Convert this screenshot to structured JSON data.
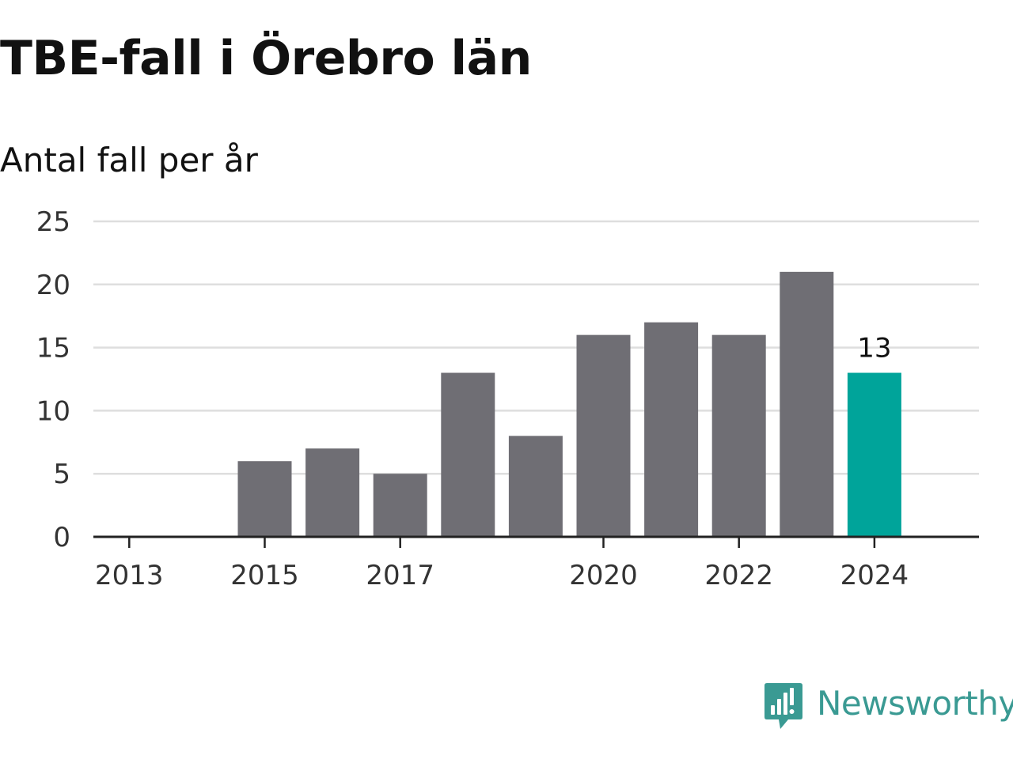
{
  "title": "TBE-fall i Örebro län",
  "subtitle": "Antal fall per år",
  "brand": {
    "name": "Newsworthy",
    "logo_icon": "newsworthy-chart-bubble-icon",
    "color": "#3a9a93"
  },
  "chart_data": {
    "type": "bar",
    "title": "TBE-fall i Örebro län",
    "subtitle": "Antal fall per år",
    "xlabel": "",
    "ylabel": "",
    "categories": [
      "2013",
      "2014",
      "2015",
      "2016",
      "2017",
      "2018",
      "2019",
      "2020",
      "2021",
      "2022",
      "2023",
      "2024"
    ],
    "values": [
      0,
      0,
      6,
      7,
      5,
      13,
      8,
      16,
      17,
      16,
      21,
      13
    ],
    "x_tick_labels": [
      "2013",
      "2015",
      "2017",
      "2020",
      "2022",
      "2024"
    ],
    "y_ticks": [
      0,
      5,
      10,
      15,
      20,
      25
    ],
    "ylim": [
      0,
      25
    ],
    "grid": true,
    "legend": "none",
    "highlight": {
      "category": "2024",
      "label": "13"
    },
    "colors": {
      "bar": "#6f6e74",
      "highlight": "#00a49a",
      "grid": "#dedede",
      "axis": "#222222",
      "tick_text": "#333333"
    }
  }
}
